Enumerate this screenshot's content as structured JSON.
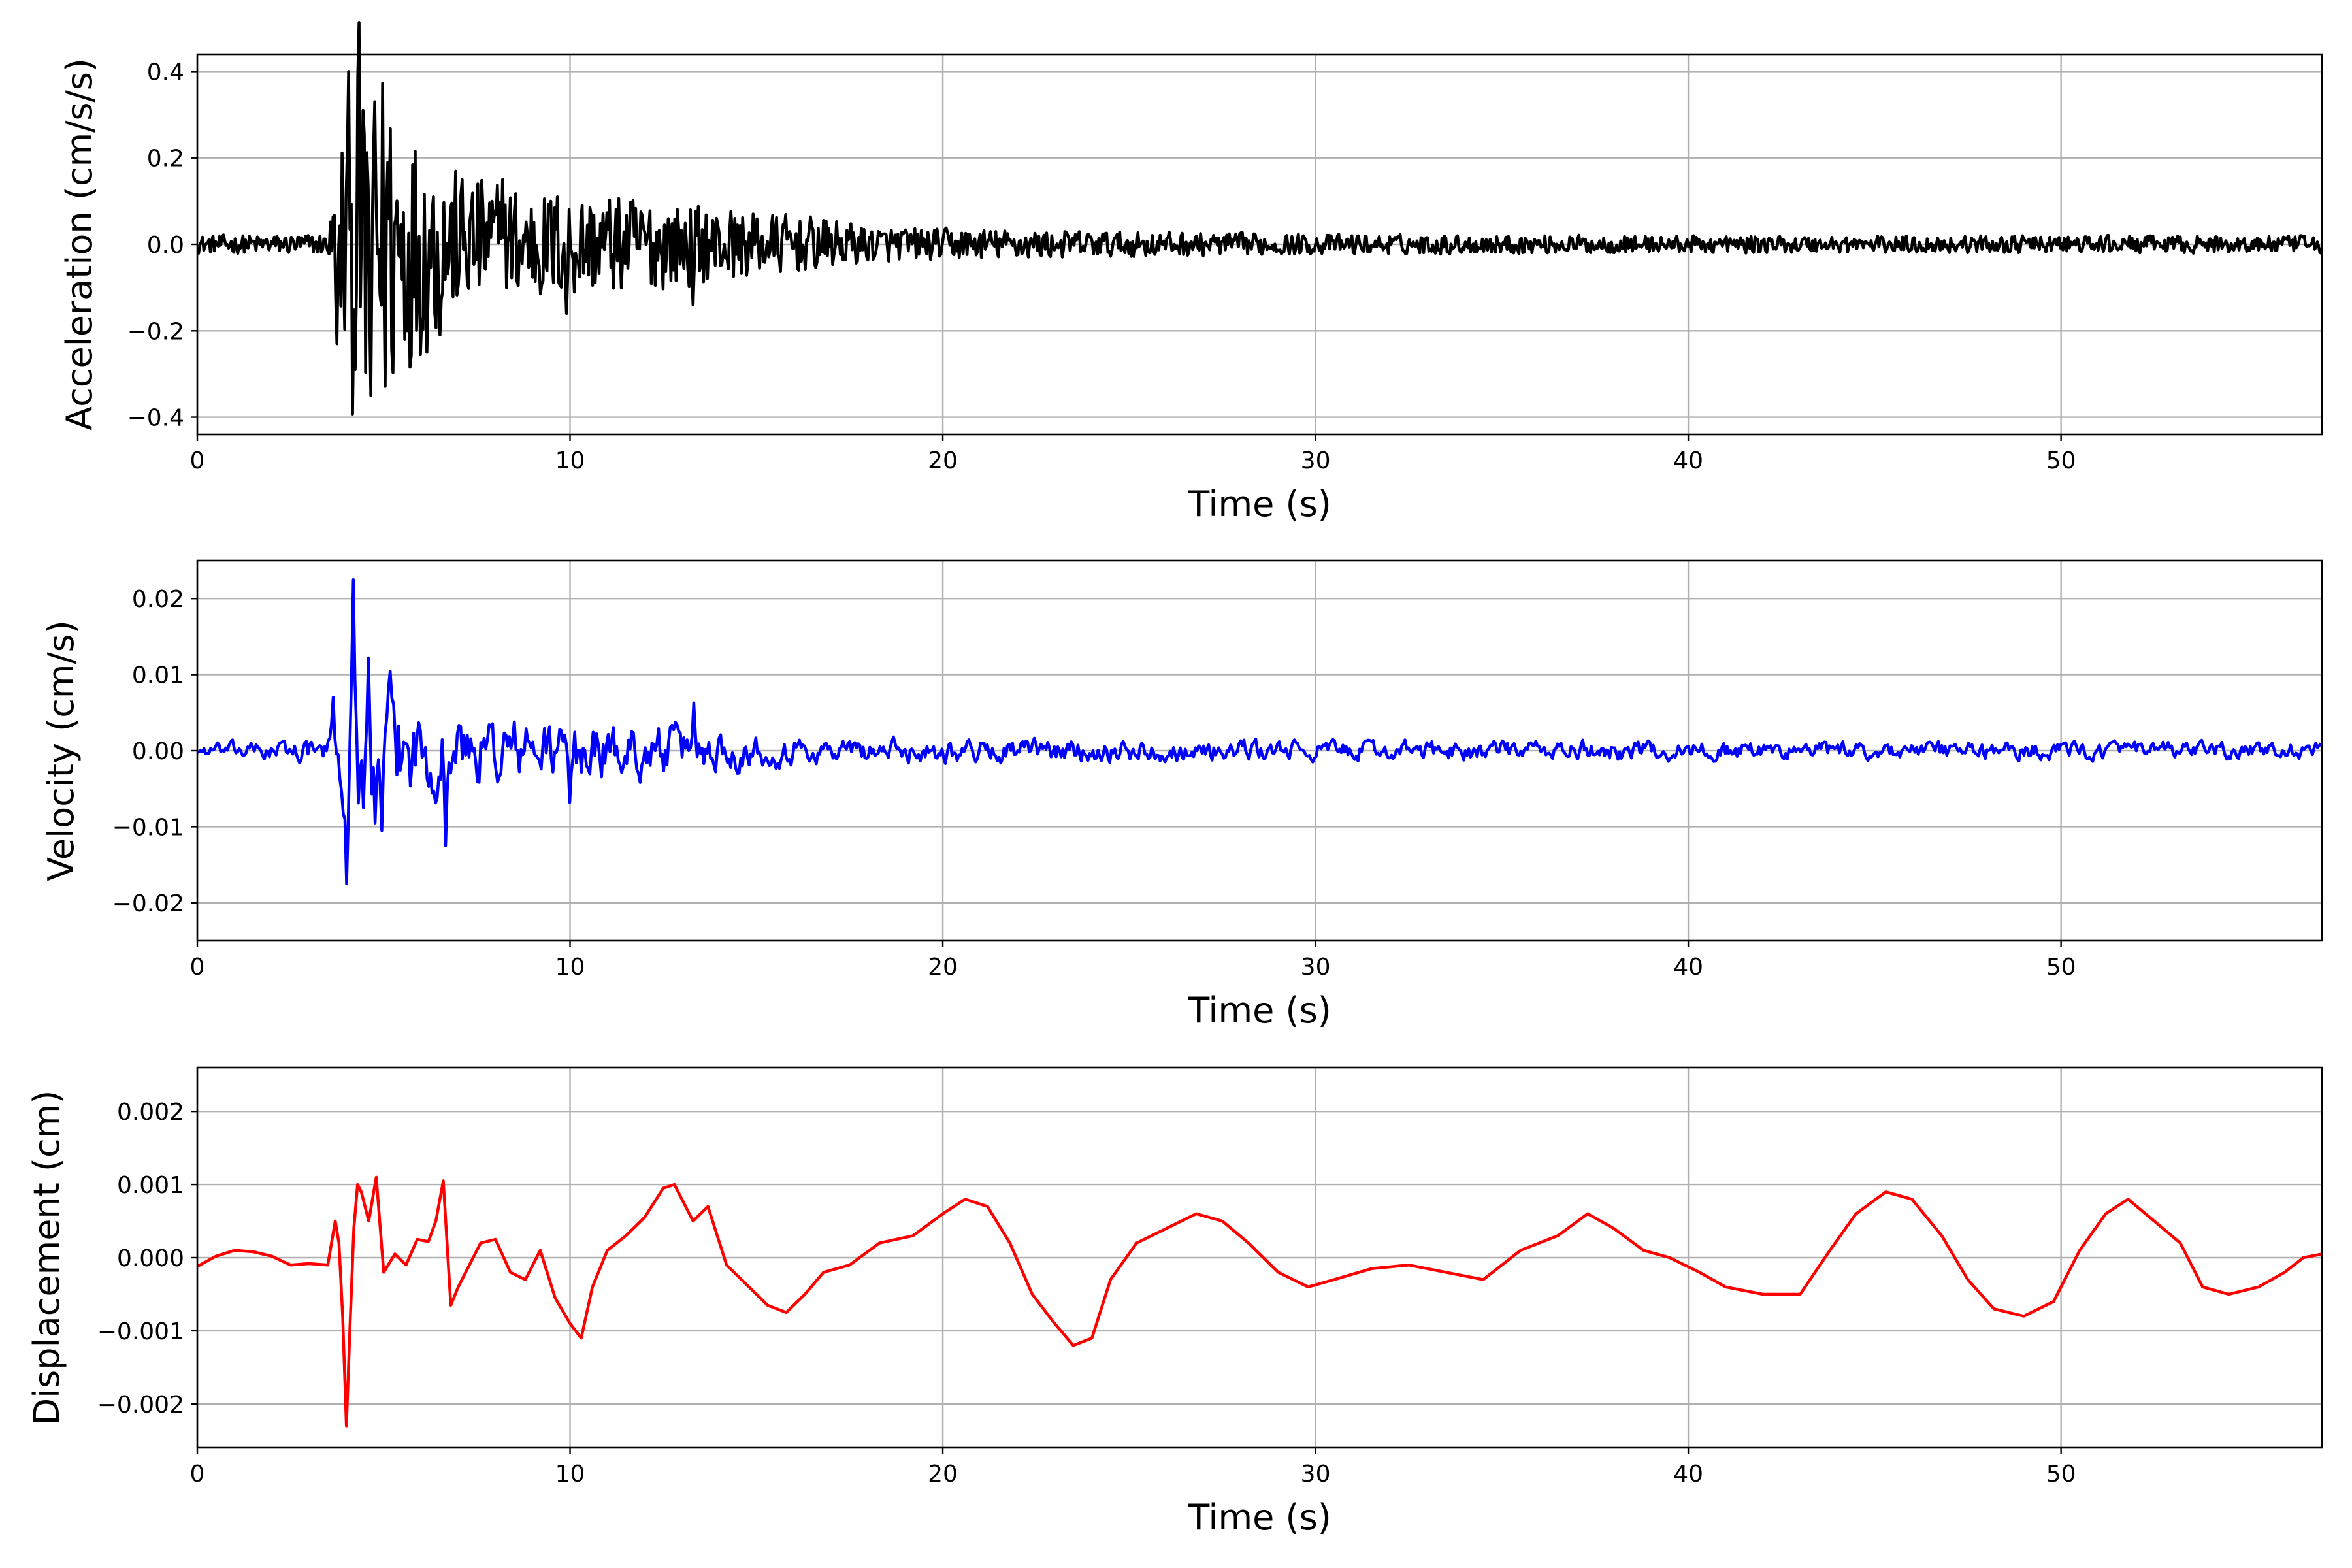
{
  "chart_data": [
    {
      "type": "line",
      "xlabel": "Time (s)",
      "ylabel": "Acceleration (cm/s/s)",
      "xlim": [
        0,
        57
      ],
      "ylim": [
        -0.44,
        0.44
      ],
      "xticks": [
        0,
        10,
        20,
        30,
        40,
        50
      ],
      "yticks": [
        -0.4,
        -0.2,
        0.0,
        0.2,
        0.4
      ],
      "ytick_labels": [
        "−0.4",
        "−0.2",
        "0.0",
        "0.2",
        "0.4"
      ],
      "grid": true,
      "series": [
        {
          "color": "#000000",
          "envelope": {
            "x": [
              0,
              3.5,
              4.0,
              4.5,
              5.5,
              7,
              9,
              11,
              13,
              15,
              17,
              18,
              20,
              25,
              30,
              40,
              57
            ],
            "y": [
              0.012,
              0.015,
              0.22,
              0.34,
              0.19,
              0.1,
              0.08,
              0.07,
              0.06,
              0.045,
              0.035,
              0.025,
              0.022,
              0.018,
              0.014,
              0.012,
              0.012
            ]
          },
          "peaks": {
            "x": [
              3.75,
              4.05,
              4.25,
              4.45,
              4.65,
              4.75,
              5.1,
              6.5,
              8.2,
              9.9,
              13.3
            ],
            "y": [
              -0.23,
              0.4,
              -0.29,
              0.31,
              -0.35,
              0.33,
              0.19,
              -0.21,
              0.15,
              -0.16,
              -0.14
            ]
          }
        }
      ]
    },
    {
      "type": "line",
      "xlabel": "Time (s)",
      "ylabel": "Velocity (cm/s)",
      "xlim": [
        0,
        57
      ],
      "ylim": [
        -0.025,
        0.025
      ],
      "xticks": [
        0,
        10,
        20,
        30,
        40,
        50
      ],
      "yticks": [
        -0.02,
        -0.01,
        0.0,
        0.01,
        0.02
      ],
      "ytick_labels": [
        "−0.02",
        "−0.01",
        "0.00",
        "0.01",
        "0.02"
      ],
      "grid": true,
      "series": [
        {
          "color": "#0000ff",
          "envelope": {
            "x": [
              0,
              3.5,
              4.0,
              4.5,
              5.5,
              7,
              9,
              11,
              13,
              15,
              17,
              20,
              30,
              40,
              57
            ],
            "y": [
              0.0008,
              0.0015,
              0.012,
              0.01,
              0.006,
              0.0045,
              0.004,
              0.0035,
              0.003,
              0.002,
              0.0015,
              0.0015,
              0.0012,
              0.0012,
              0.001
            ]
          },
          "peaks": {
            "x": [
              3.65,
              4.0,
              4.2,
              4.45,
              4.6,
              4.75,
              4.95,
              6.65,
              10.0,
              13.3
            ],
            "y": [
              0.007,
              -0.0175,
              0.0225,
              -0.0075,
              0.0122,
              -0.0095,
              -0.0105,
              -0.0125,
              -0.0068,
              0.0063
            ]
          }
        }
      ]
    },
    {
      "type": "line",
      "xlabel": "Time (s)",
      "ylabel": "Displacement (cm)",
      "xlim": [
        0,
        57
      ],
      "ylim": [
        -0.0026,
        0.0026
      ],
      "xticks": [
        0,
        10,
        20,
        30,
        40,
        50
      ],
      "yticks": [
        -0.002,
        -0.001,
        0.0,
        0.001,
        0.002
      ],
      "ytick_labels": [
        "−0.002",
        "−0.001",
        "0.000",
        "0.001",
        "0.002"
      ],
      "grid": true,
      "series": [
        {
          "color": "#ff0000",
          "x": [
            0,
            0.5,
            1,
            1.5,
            2,
            2.5,
            3,
            3.5,
            3.7,
            3.8,
            3.9,
            4.0,
            4.1,
            4.2,
            4.3,
            4.4,
            4.6,
            4.8,
            5.0,
            5.3,
            5.6,
            5.9,
            6.2,
            6.4,
            6.6,
            6.8,
            7.0,
            7.3,
            7.6,
            8.0,
            8.4,
            8.8,
            9.2,
            9.6,
            10.0,
            10.3,
            10.6,
            11.0,
            11.5,
            12.0,
            12.5,
            12.8,
            13.0,
            13.3,
            13.7,
            14.2,
            14.8,
            15.3,
            15.8,
            16.3,
            16.8,
            17.5,
            18.3,
            19.2,
            20.0,
            20.6,
            21.2,
            21.8,
            22.4,
            23.0,
            23.5,
            24.0,
            24.5,
            25.2,
            26.0,
            26.8,
            27.5,
            28.2,
            29.0,
            29.8,
            30.5,
            31.5,
            32.5,
            33.5,
            34.5,
            35.5,
            36.5,
            37.3,
            38.0,
            38.8,
            39.5,
            40.3,
            41.0,
            42.0,
            43.0,
            43.8,
            44.5,
            45.3,
            46.0,
            46.8,
            47.5,
            48.2,
            49.0,
            49.8,
            50.5,
            51.2,
            51.8,
            52.5,
            53.2,
            53.8,
            54.5,
            55.3,
            56.0,
            56.5,
            57
          ],
          "y": [
            -0.00012,
            2e-05,
            0.0001,
            8e-05,
            2e-05,
            -0.0001,
            -8e-05,
            -0.0001,
            0.0005,
            0.0002,
            -0.0008,
            -0.0023,
            -0.0009,
            0.0004,
            0.001,
            0.0009,
            0.0005,
            0.0011,
            -0.0002,
            5e-05,
            -0.0001,
            0.00025,
            0.00022,
            0.0005,
            0.00105,
            -0.00065,
            -0.0004,
            -0.0001,
            0.0002,
            0.00025,
            -0.0002,
            -0.0003,
            0.0001,
            -0.00055,
            -0.0009,
            -0.0011,
            -0.0004,
            0.0001,
            0.0003,
            0.00055,
            0.00095,
            0.001,
            0.0008,
            0.0005,
            0.0007,
            -0.0001,
            -0.0004,
            -0.00065,
            -0.00075,
            -0.0005,
            -0.0002,
            -0.0001,
            0.0002,
            0.0003,
            0.0006,
            0.0008,
            0.0007,
            0.0002,
            -0.0005,
            -0.0009,
            -0.0012,
            -0.0011,
            -0.0003,
            0.0002,
            0.0004,
            0.0006,
            0.0005,
            0.0002,
            -0.0002,
            -0.0004,
            -0.0003,
            -0.00015,
            -0.0001,
            -0.0002,
            -0.0003,
            0.0001,
            0.0003,
            0.0006,
            0.0004,
            0.0001,
            0.0,
            -0.0002,
            -0.0004,
            -0.0005,
            -0.0005,
            0.0001,
            0.0006,
            0.0009,
            0.0008,
            0.0003,
            -0.0003,
            -0.0007,
            -0.0008,
            -0.0006,
            0.0001,
            0.0006,
            0.0008,
            0.0005,
            0.0002,
            -0.0004,
            -0.0005,
            -0.0004,
            -0.0002,
            0.0,
            5e-05
          ]
        }
      ]
    }
  ]
}
